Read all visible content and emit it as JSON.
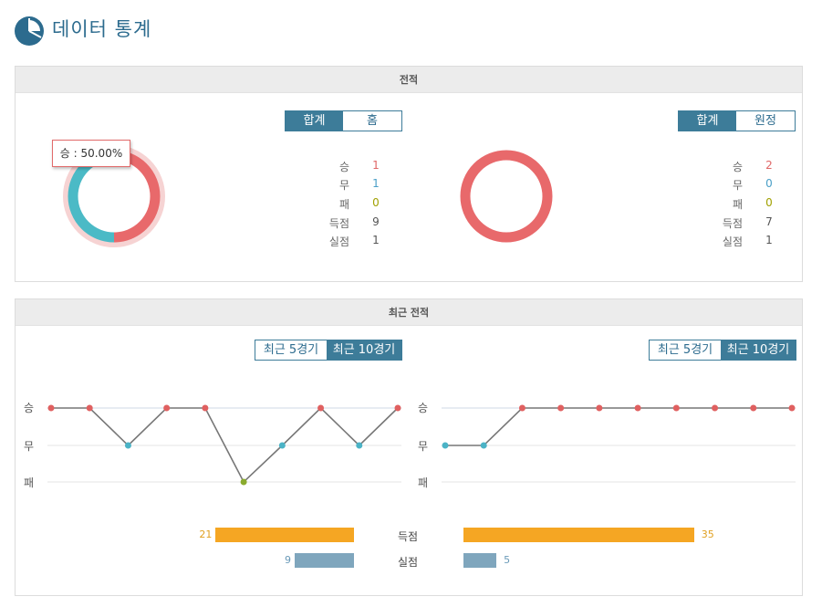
{
  "header": {
    "title": "데이터 통계",
    "icon": "pie-chart-icon"
  },
  "record": {
    "section_title": "전적",
    "tooltip": "승 : 50.00%",
    "left": {
      "toggle": [
        "합계",
        "홈"
      ],
      "toggle_active": 0,
      "stats": [
        {
          "label": "승",
          "value": "1"
        },
        {
          "label": "무",
          "value": "1"
        },
        {
          "label": "패",
          "value": "0"
        },
        {
          "label": "득점",
          "value": "9"
        },
        {
          "label": "실점",
          "value": "1"
        }
      ]
    },
    "right": {
      "toggle": [
        "합계",
        "원정"
      ],
      "toggle_active": 0,
      "stats": [
        {
          "label": "승",
          "value": "2"
        },
        {
          "label": "무",
          "value": "0"
        },
        {
          "label": "패",
          "value": "0"
        },
        {
          "label": "득점",
          "value": "7"
        },
        {
          "label": "실점",
          "value": "1"
        }
      ]
    },
    "colors": {
      "win": "#e8696b",
      "draw": "#4bbac6",
      "loss": "#a0a000"
    }
  },
  "recent": {
    "section_title": "최근 전적",
    "toggle": [
      "최근 5경기",
      "최근 10경기"
    ],
    "toggle_active": 1,
    "y_labels": [
      "승",
      "무",
      "패"
    ],
    "bar_labels": {
      "goals": "득점",
      "conceded": "실점"
    },
    "colors": {
      "goals": "#f5a623",
      "conceded": "#7fa6bd"
    }
  },
  "chart_data": [
    {
      "type": "pie",
      "title": "",
      "categories": [
        "승",
        "무",
        "패"
      ],
      "values": [
        1,
        1,
        0
      ]
    },
    {
      "type": "pie",
      "title": "",
      "categories": [
        "승",
        "무",
        "패"
      ],
      "values": [
        2,
        0,
        0
      ]
    },
    {
      "type": "line",
      "title": "",
      "y_categories": [
        "승",
        "무",
        "패"
      ],
      "x": [
        1,
        2,
        3,
        4,
        5,
        6,
        7,
        8,
        9,
        10
      ],
      "values": [
        "승",
        "승",
        "무",
        "승",
        "승",
        "패",
        "무",
        "승",
        "무",
        "승"
      ]
    },
    {
      "type": "line",
      "title": "",
      "y_categories": [
        "승",
        "무",
        "패"
      ],
      "x": [
        1,
        2,
        3,
        4,
        5,
        6,
        7,
        8,
        9,
        10
      ],
      "values": [
        "무",
        "무",
        "승",
        "승",
        "승",
        "승",
        "승",
        "승",
        "승",
        "승"
      ]
    },
    {
      "type": "bar",
      "title": "",
      "categories": [
        "득점",
        "실점"
      ],
      "series": [
        {
          "values": [
            21,
            9
          ]
        },
        {
          "values": [
            35,
            5
          ]
        }
      ],
      "xlim": [
        0,
        36
      ]
    }
  ]
}
